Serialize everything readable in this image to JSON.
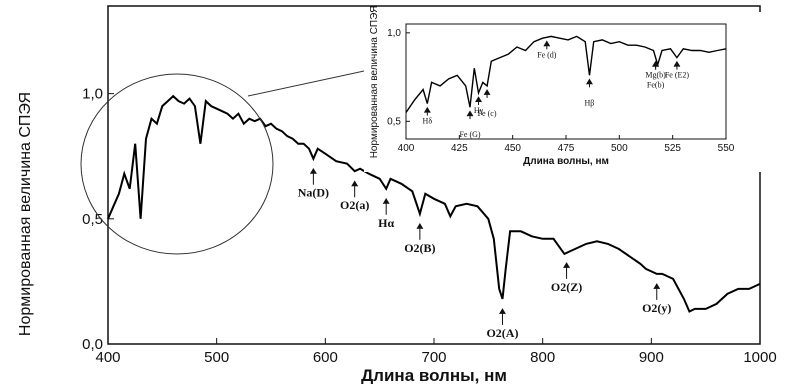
{
  "chart_data": [
    {
      "type": "line",
      "xlabel": "Длина волны, нм",
      "ylabel": "Нормированная величина СПЭЯ",
      "xlim": [
        400,
        1000
      ],
      "ylim": [
        0.0,
        1.35
      ],
      "xticks": [
        "400",
        "500",
        "600",
        "700",
        "800",
        "900",
        "1000"
      ],
      "yticks": [
        "0,0",
        "0,5",
        "1,0"
      ],
      "grid": false,
      "series": [
        {
          "x": [
            400,
            405,
            410,
            415,
            420,
            425,
            430,
            435,
            440,
            445,
            450,
            455,
            460,
            465,
            470,
            475,
            480,
            485,
            490,
            495,
            500,
            505,
            510,
            515,
            520,
            525,
            530,
            535,
            540,
            545,
            550,
            555,
            560,
            565,
            570,
            575,
            580,
            585,
            589,
            593,
            600,
            610,
            620,
            627,
            632,
            640,
            650,
            656,
            660,
            670,
            680,
            687,
            692,
            700,
            710,
            715,
            720,
            730,
            740,
            750,
            755,
            760,
            763,
            766,
            770,
            780,
            790,
            800,
            810,
            815,
            820,
            825,
            830,
            840,
            850,
            860,
            870,
            880,
            890,
            895,
            900,
            905,
            910,
            920,
            930,
            935,
            940,
            950,
            960,
            970,
            980,
            990,
            1000
          ],
          "y": [
            0.5,
            0.55,
            0.6,
            0.68,
            0.62,
            0.8,
            0.5,
            0.82,
            0.9,
            0.88,
            0.95,
            0.97,
            0.99,
            0.97,
            0.96,
            0.98,
            0.95,
            0.8,
            0.97,
            0.95,
            0.94,
            0.93,
            0.92,
            0.9,
            0.92,
            0.88,
            0.9,
            0.89,
            0.9,
            0.87,
            0.88,
            0.86,
            0.85,
            0.83,
            0.82,
            0.8,
            0.8,
            0.78,
            0.74,
            0.78,
            0.76,
            0.73,
            0.72,
            0.69,
            0.7,
            0.68,
            0.66,
            0.62,
            0.66,
            0.64,
            0.61,
            0.52,
            0.6,
            0.58,
            0.56,
            0.51,
            0.55,
            0.56,
            0.55,
            0.5,
            0.42,
            0.22,
            0.18,
            0.3,
            0.45,
            0.45,
            0.43,
            0.42,
            0.42,
            0.39,
            0.36,
            0.37,
            0.38,
            0.4,
            0.41,
            0.4,
            0.38,
            0.35,
            0.32,
            0.3,
            0.29,
            0.28,
            0.28,
            0.26,
            0.18,
            0.13,
            0.14,
            0.14,
            0.16,
            0.2,
            0.22,
            0.22,
            0.24
          ]
        }
      ],
      "annotations": [
        {
          "label": "Na(D)",
          "x": 589
        },
        {
          "label": "O2(a)",
          "x": 627
        },
        {
          "label": "Hα",
          "x": 656
        },
        {
          "label": "O2(B)",
          "x": 687
        },
        {
          "label": "O2(A)",
          "x": 763
        },
        {
          "label": "O2(Z)",
          "x": 822
        },
        {
          "label": "O2(y)",
          "x": 905
        }
      ]
    },
    {
      "type": "line",
      "xlabel": "Длина волны, нм",
      "ylabel": "Нормированная величина СПЭЯ",
      "xlim": [
        400,
        550
      ],
      "ylim": [
        0.4,
        1.05
      ],
      "xticks": [
        "400",
        "425",
        "450",
        "475",
        "500",
        "525",
        "550"
      ],
      "yticks": [
        "0,5",
        "1,0"
      ],
      "series": [
        {
          "x": [
            400,
            404,
            408,
            410,
            412,
            416,
            420,
            424,
            428,
            430,
            432,
            434,
            436,
            438,
            440,
            444,
            448,
            452,
            456,
            460,
            464,
            468,
            472,
            476,
            480,
            484,
            486,
            488,
            492,
            496,
            500,
            504,
            508,
            512,
            516,
            518,
            520,
            524,
            527,
            530,
            534,
            538,
            542,
            546,
            550
          ],
          "y": [
            0.55,
            0.62,
            0.68,
            0.6,
            0.72,
            0.7,
            0.74,
            0.76,
            0.7,
            0.58,
            0.8,
            0.66,
            0.72,
            0.7,
            0.84,
            0.86,
            0.88,
            0.92,
            0.9,
            0.95,
            0.97,
            0.98,
            0.97,
            0.96,
            0.98,
            0.95,
            0.76,
            0.95,
            0.96,
            0.94,
            0.95,
            0.93,
            0.93,
            0.92,
            0.9,
            0.82,
            0.9,
            0.91,
            0.86,
            0.91,
            0.9,
            0.9,
            0.89,
            0.9,
            0.91
          ]
        }
      ],
      "annotations": [
        {
          "label": "Hδ",
          "x": 410
        },
        {
          "label": "Fe (G)",
          "x": 430
        },
        {
          "label": "Hγ",
          "x": 434
        },
        {
          "label": "Fe (c)",
          "x": 438
        },
        {
          "label": "Fe (d)",
          "x": 466
        },
        {
          "label": "Hβ",
          "x": 486
        },
        {
          "label": "Mg(b)",
          "x": 517
        },
        {
          "label": "Fe(b)",
          "x": 517
        },
        {
          "label": "Fe (E2)",
          "x": 527
        }
      ]
    }
  ]
}
